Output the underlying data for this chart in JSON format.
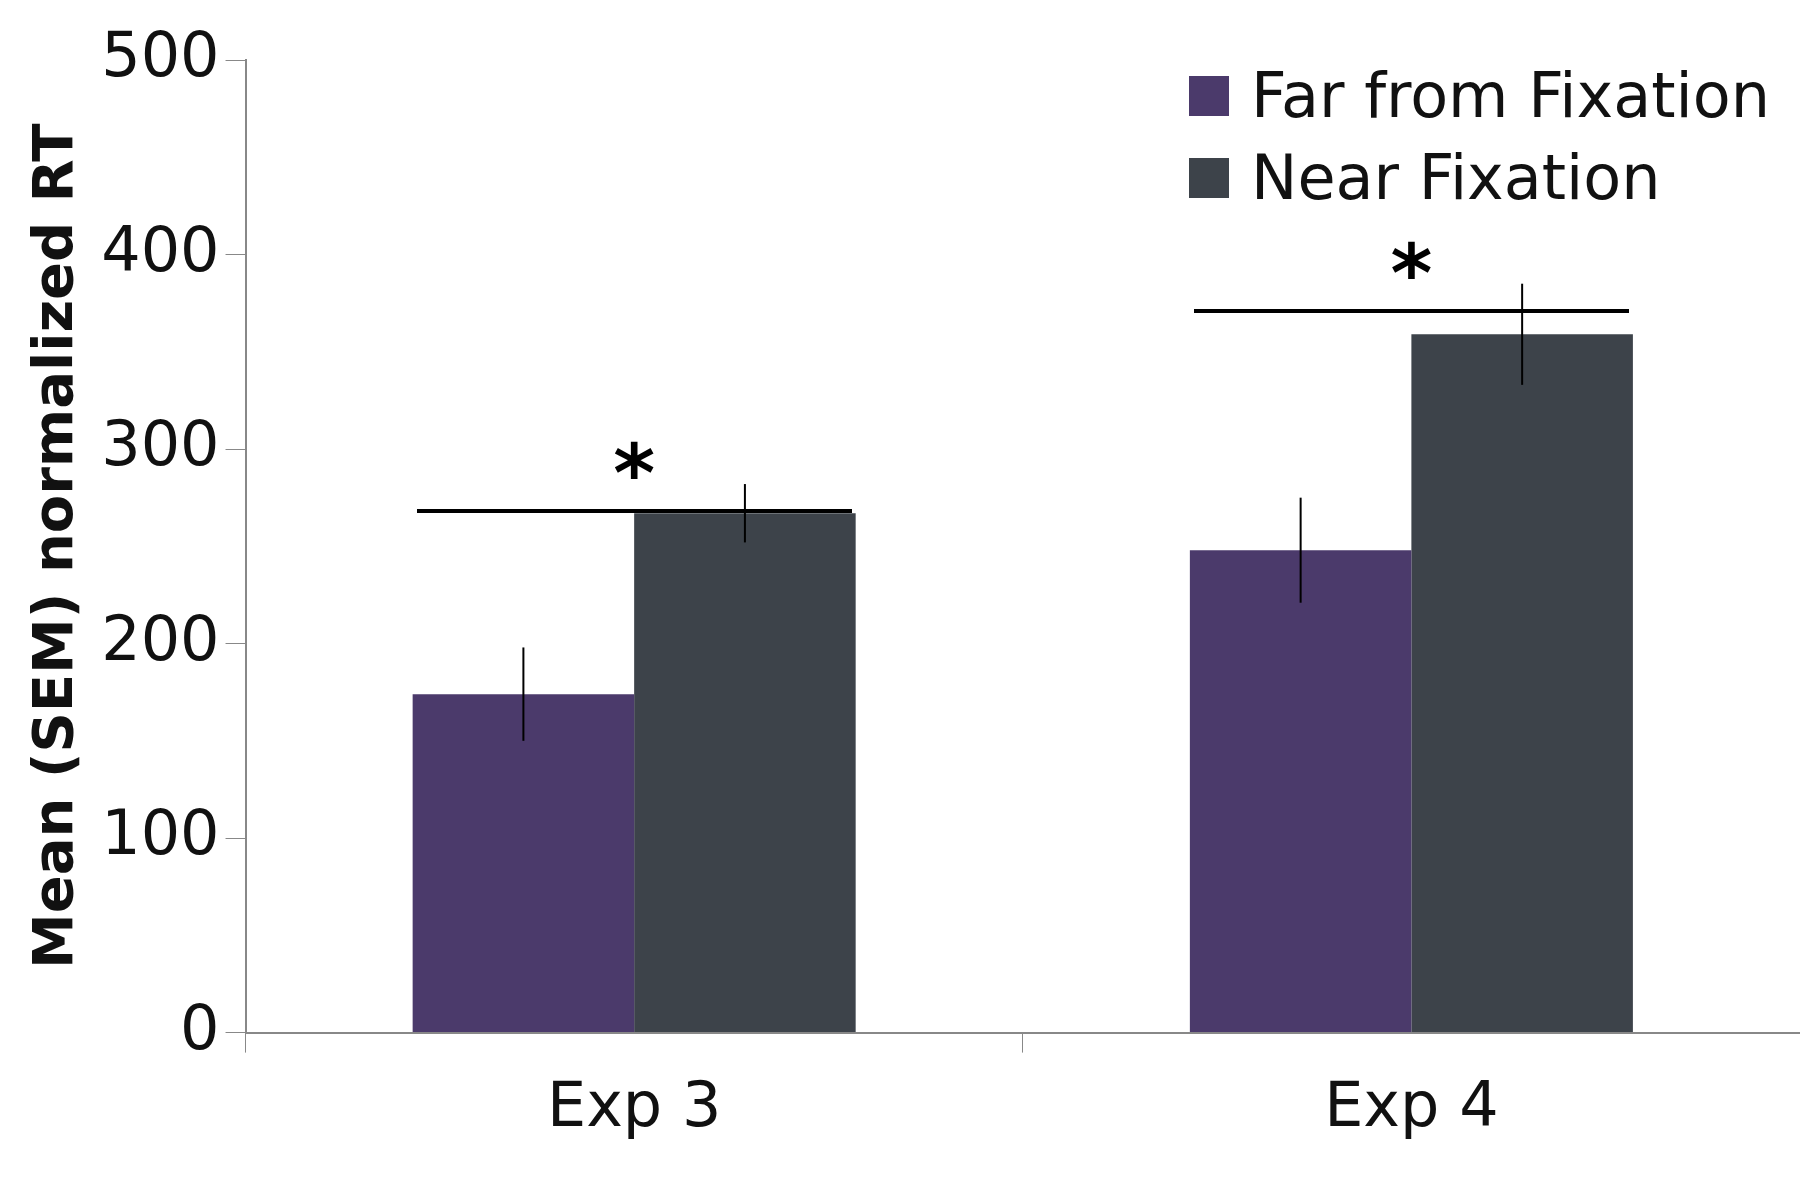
{
  "chart_data": {
    "type": "bar",
    "ylabel": "Mean (SEM) normalized RT",
    "categories": [
      "Exp 3",
      "Exp 4"
    ],
    "series": [
      {
        "name": "Far from Fixation",
        "color": "#4b3a6b",
        "values": [
          174,
          248
        ],
        "errors": [
          24,
          27
        ]
      },
      {
        "name": "Near Fixation",
        "color": "#3d434a",
        "values": [
          267,
          359
        ],
        "errors": [
          15,
          26
        ]
      }
    ],
    "ylim": [
      0,
      500
    ],
    "yticks": [
      0,
      100,
      200,
      300,
      400,
      500
    ],
    "grid": false,
    "legend": "top right",
    "annotations": [
      "*",
      "*"
    ]
  }
}
